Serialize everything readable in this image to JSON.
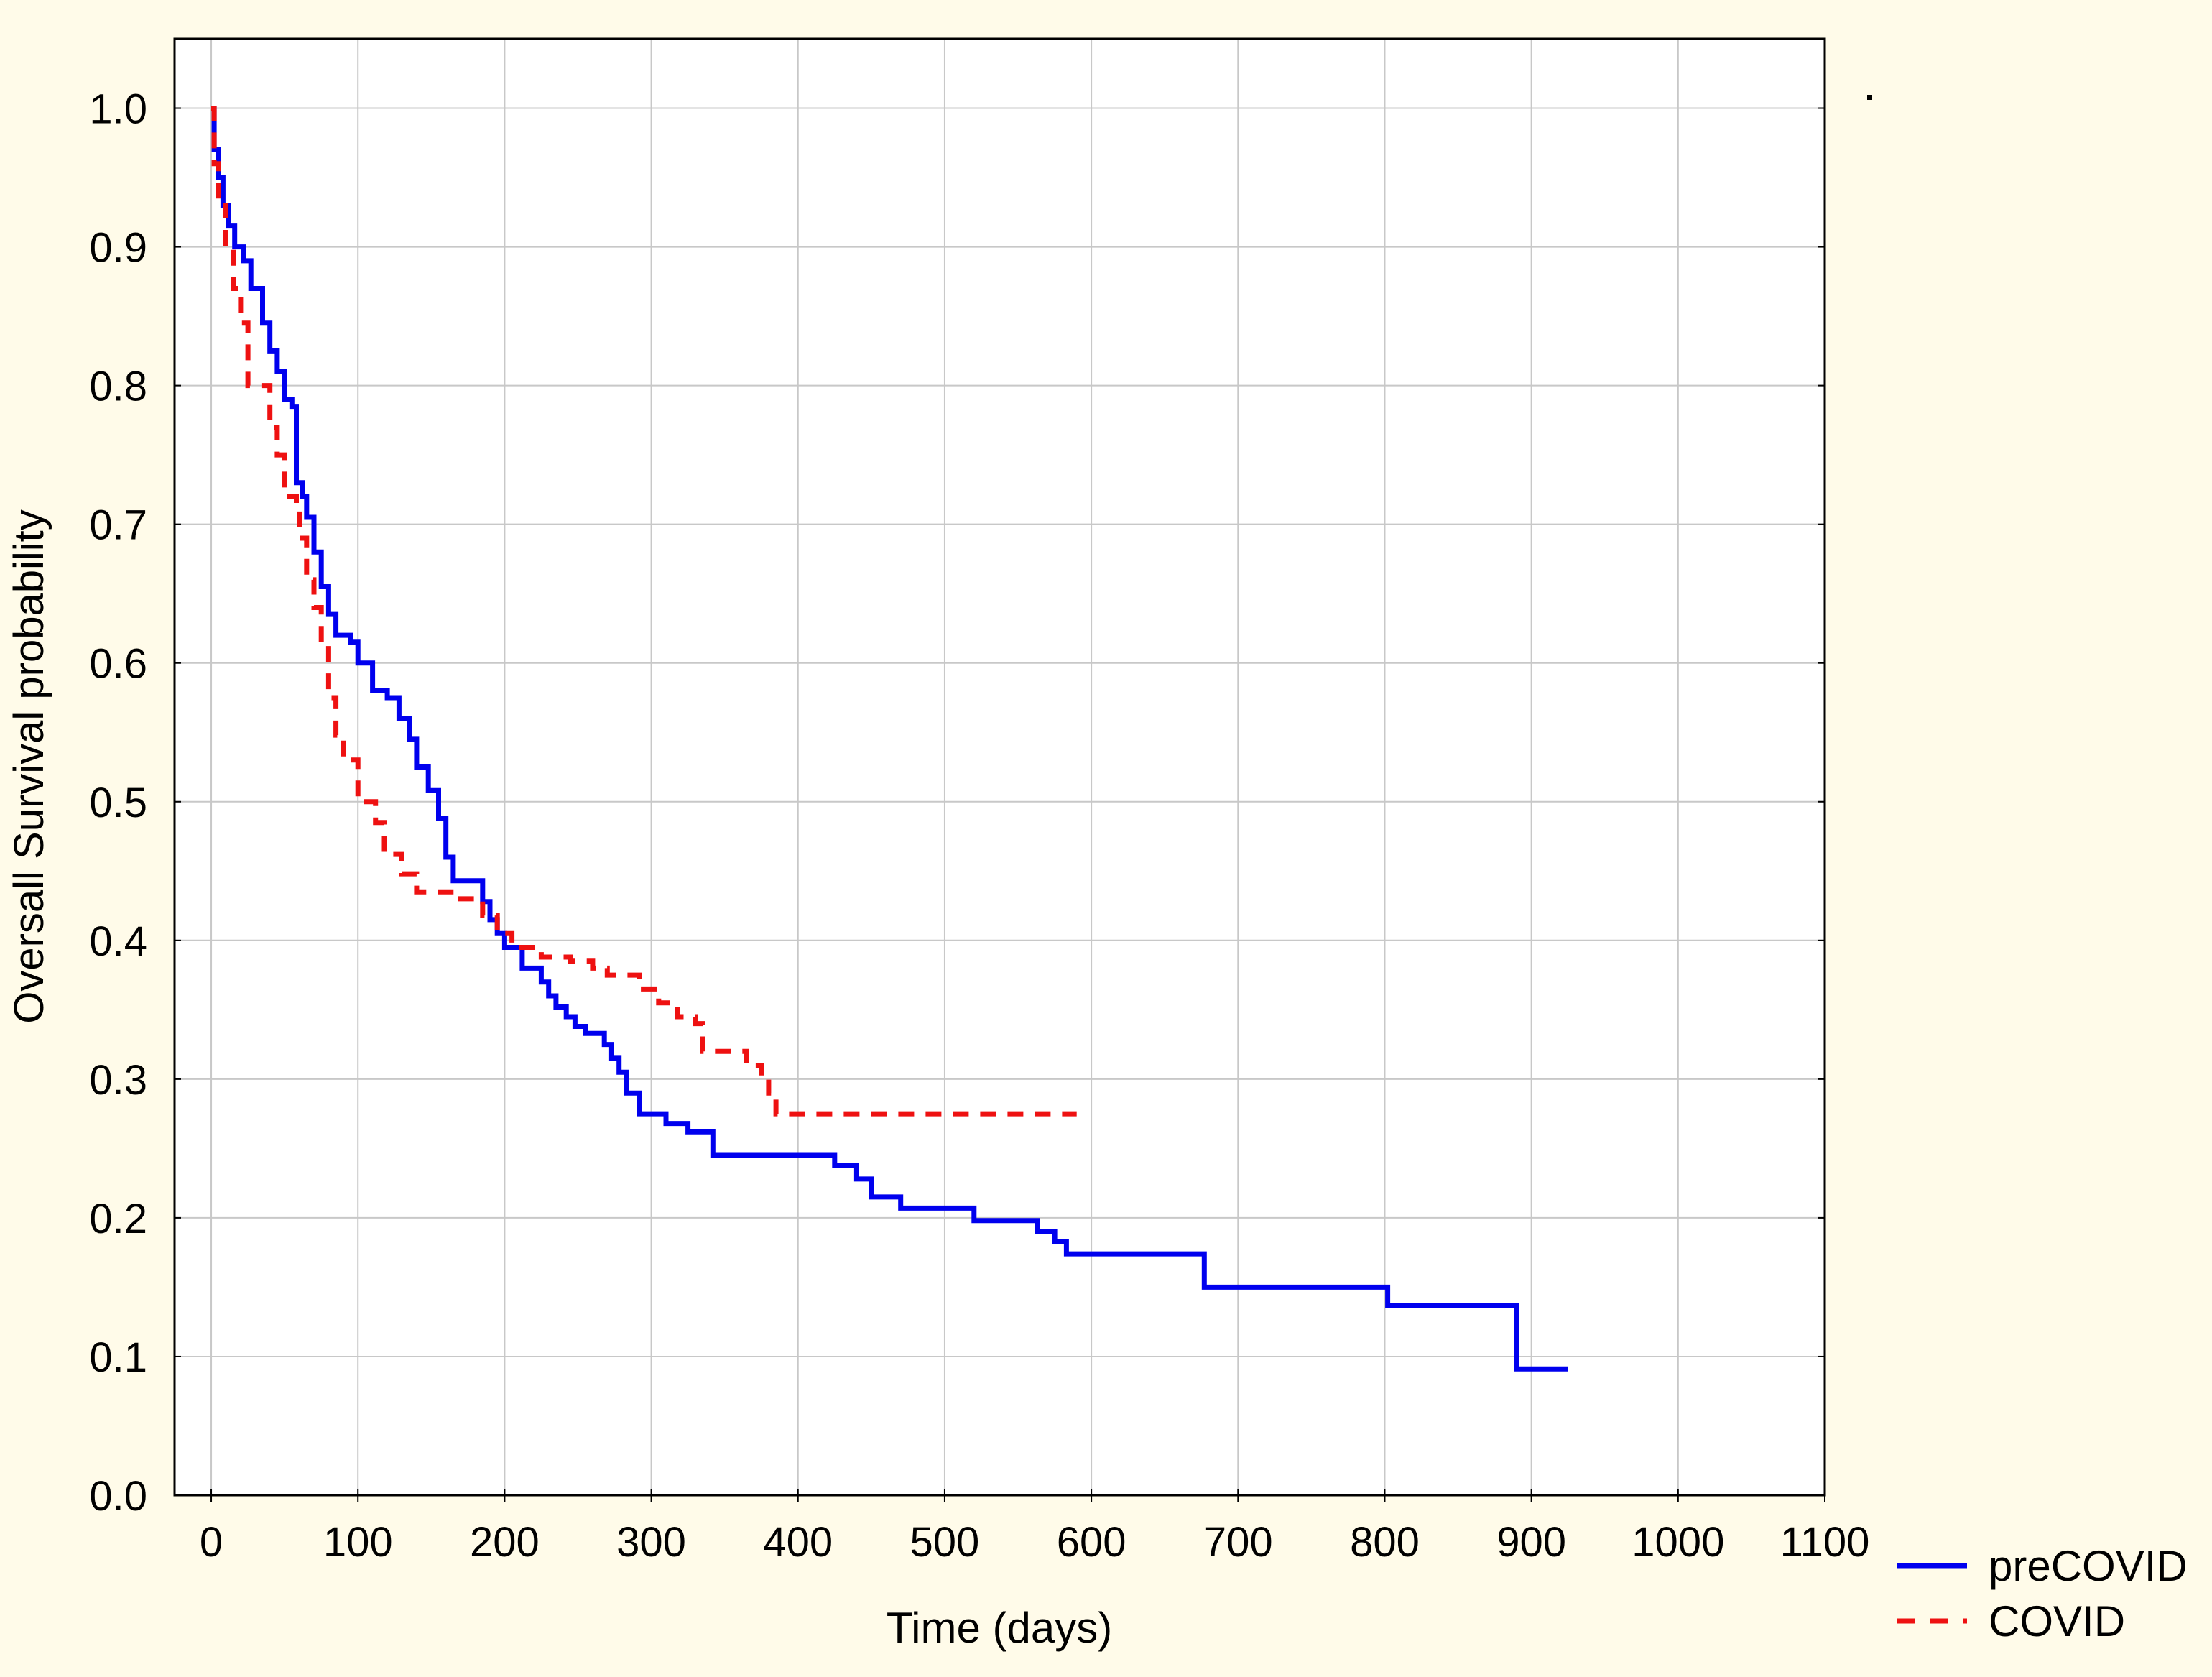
{
  "chart_data": {
    "type": "line",
    "title": "",
    "xlabel": "Time (days)",
    "ylabel": "Oversall Survival probability",
    "xlim": [
      -25,
      1100
    ],
    "ylim": [
      0.0,
      1.05
    ],
    "xticks": [
      0,
      100,
      200,
      300,
      400,
      500,
      600,
      700,
      800,
      900,
      1000,
      1100
    ],
    "xtick_labels": [
      "0",
      "100",
      "200",
      "300",
      "400",
      "500",
      "600",
      "700",
      "800",
      "900",
      "1000",
      "1100"
    ],
    "yticks": [
      0.0,
      0.1,
      0.2,
      0.3,
      0.4,
      0.5,
      0.6,
      0.7,
      0.8,
      0.9,
      1.0
    ],
    "ytick_labels": [
      "0.0",
      "0.1",
      "0.2",
      "0.3",
      "0.4",
      "0.5",
      "0.6",
      "0.7",
      "0.8",
      "0.9",
      "1.0"
    ],
    "grid": true,
    "legend_position": "bottom-right, outside plot",
    "series": [
      {
        "name": "preCOVID",
        "color": "#0000ee",
        "style": "solid",
        "step": true,
        "points": [
          [
            0,
            1.0
          ],
          [
            2,
            0.97
          ],
          [
            5,
            0.95
          ],
          [
            8,
            0.93
          ],
          [
            12,
            0.915
          ],
          [
            16,
            0.9
          ],
          [
            22,
            0.89
          ],
          [
            27,
            0.87
          ],
          [
            35,
            0.845
          ],
          [
            40,
            0.825
          ],
          [
            45,
            0.81
          ],
          [
            50,
            0.79
          ],
          [
            55,
            0.785
          ],
          [
            58,
            0.73
          ],
          [
            62,
            0.72
          ],
          [
            65,
            0.705
          ],
          [
            70,
            0.68
          ],
          [
            75,
            0.655
          ],
          [
            80,
            0.635
          ],
          [
            85,
            0.62
          ],
          [
            95,
            0.615
          ],
          [
            100,
            0.6
          ],
          [
            110,
            0.58
          ],
          [
            120,
            0.575
          ],
          [
            128,
            0.56
          ],
          [
            135,
            0.545
          ],
          [
            140,
            0.525
          ],
          [
            148,
            0.508
          ],
          [
            155,
            0.488
          ],
          [
            160,
            0.46
          ],
          [
            165,
            0.443
          ],
          [
            185,
            0.428
          ],
          [
            190,
            0.415
          ],
          [
            195,
            0.405
          ],
          [
            200,
            0.395
          ],
          [
            212,
            0.38
          ],
          [
            225,
            0.37
          ],
          [
            230,
            0.36
          ],
          [
            235,
            0.352
          ],
          [
            242,
            0.345
          ],
          [
            248,
            0.338
          ],
          [
            255,
            0.333
          ],
          [
            268,
            0.325
          ],
          [
            273,
            0.315
          ],
          [
            278,
            0.305
          ],
          [
            283,
            0.29
          ],
          [
            292,
            0.275
          ],
          [
            310,
            0.268
          ],
          [
            325,
            0.262
          ],
          [
            342,
            0.245
          ],
          [
            425,
            0.238
          ],
          [
            440,
            0.228
          ],
          [
            450,
            0.215
          ],
          [
            470,
            0.207
          ],
          [
            520,
            0.198
          ],
          [
            563,
            0.19
          ],
          [
            575,
            0.183
          ],
          [
            583,
            0.174
          ],
          [
            677,
            0.15
          ],
          [
            802,
            0.137
          ],
          [
            890,
            0.091
          ],
          [
            925,
            0.091
          ]
        ]
      },
      {
        "name": "COVID",
        "color": "#ee1111",
        "style": "dashed",
        "step": true,
        "points": [
          [
            0,
            1.0
          ],
          [
            2,
            0.96
          ],
          [
            5,
            0.93
          ],
          [
            10,
            0.9
          ],
          [
            15,
            0.87
          ],
          [
            20,
            0.845
          ],
          [
            25,
            0.8
          ],
          [
            40,
            0.77
          ],
          [
            45,
            0.75
          ],
          [
            50,
            0.72
          ],
          [
            58,
            0.715
          ],
          [
            60,
            0.69
          ],
          [
            65,
            0.66
          ],
          [
            70,
            0.64
          ],
          [
            75,
            0.615
          ],
          [
            80,
            0.575
          ],
          [
            85,
            0.548
          ],
          [
            90,
            0.53
          ],
          [
            100,
            0.5
          ],
          [
            112,
            0.485
          ],
          [
            118,
            0.462
          ],
          [
            130,
            0.448
          ],
          [
            140,
            0.435
          ],
          [
            170,
            0.43
          ],
          [
            185,
            0.418
          ],
          [
            195,
            0.405
          ],
          [
            205,
            0.395
          ],
          [
            225,
            0.388
          ],
          [
            245,
            0.385
          ],
          [
            260,
            0.38
          ],
          [
            270,
            0.375
          ],
          [
            292,
            0.365
          ],
          [
            305,
            0.355
          ],
          [
            318,
            0.345
          ],
          [
            330,
            0.34
          ],
          [
            335,
            0.32
          ],
          [
            365,
            0.31
          ],
          [
            375,
            0.3
          ],
          [
            380,
            0.29
          ],
          [
            385,
            0.275
          ],
          [
            590,
            0.275
          ]
        ]
      }
    ]
  }
}
